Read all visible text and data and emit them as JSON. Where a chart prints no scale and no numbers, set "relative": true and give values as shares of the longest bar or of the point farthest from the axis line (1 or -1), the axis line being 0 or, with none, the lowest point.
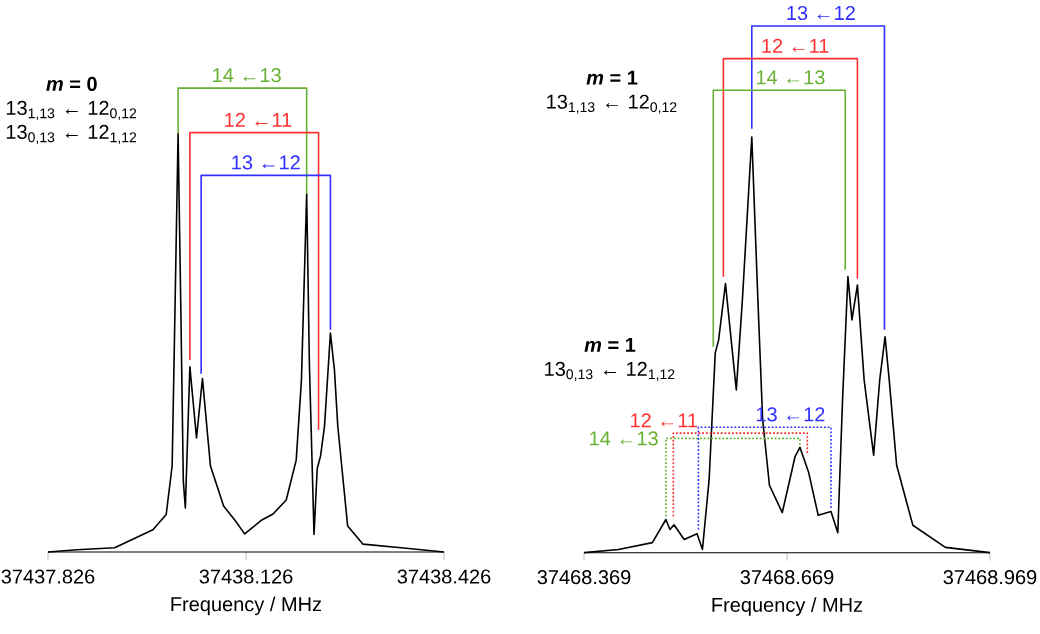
{
  "chart_data": [
    {
      "type": "line",
      "relative": true,
      "xlabel": "Frequency / MHz",
      "xlim": [
        37437.826,
        37438.426
      ],
      "xticks": [
        37437.826,
        37438.126,
        37438.426
      ],
      "series": [
        {
          "color": "#000000",
          "x": [
            37437.826,
            37437.87,
            37437.927,
            37437.985,
            37438.005,
            37438.014,
            37438.018,
            37438.023,
            37438.027,
            37438.031,
            37438.034,
            37438.041,
            37438.051,
            37438.06,
            37438.072,
            37438.092,
            37438.109,
            37438.124,
            37438.15,
            37438.167,
            37438.187,
            37438.202,
            37438.21,
            37438.218,
            37438.222,
            37438.229,
            37438.234,
            37438.239,
            37438.245,
            37438.254,
            37438.26,
            37438.265,
            37438.28,
            37438.303,
            37438.361,
            37438.426
          ],
          "values": [
            0,
            0.005,
            0.009,
            0.048,
            0.081,
            0.186,
            0.496,
            0.902,
            0.541,
            0.153,
            0.095,
            0.399,
            0.246,
            0.374,
            0.186,
            0.099,
            0.069,
            0.039,
            0.069,
            0.082,
            0.112,
            0.198,
            0.37,
            0.772,
            0.406,
            0.038,
            0.18,
            0.207,
            0.271,
            0.472,
            0.392,
            0.271,
            0.056,
            0.017,
            0.009,
            0
          ]
        },
        {
          "color": "#66b032",
          "line_style": "solid",
          "x": [
            37438.023,
            37438.023,
            37438.218,
            37438.218
          ],
          "values": [
            0.902,
            1,
            1,
            0.772
          ]
        },
        {
          "color": "#ff3030",
          "line_style": "solid",
          "x": [
            37438.041,
            37438.041,
            37438.236,
            37438.236
          ],
          "values": [
            0.414,
            0.904,
            0.904,
            0.263
          ]
        },
        {
          "color": "#3030ff",
          "line_style": "solid",
          "x": [
            37438.058,
            37438.058,
            37438.254,
            37438.254
          ],
          "values": [
            0.384,
            0.812,
            0.812,
            0.479
          ]
        }
      ],
      "annotations": [
        "*m* = 0",
        "13$_{1,13}$ ← 12$_{0,12}$",
        "13$_{0,13}$ ← 12$_{1,12}$",
        {
          "text": "14 ←13",
          "x": 37438.127,
          "y": 1
        },
        {
          "text": "12 ←11",
          "x": 37438.144,
          "y": 0.904
        },
        {
          "text": "13 ←12",
          "x": 37438.156,
          "y": 0.812
        }
      ]
    },
    {
      "type": "line",
      "relative": true,
      "xlabel": "Frequency / MHz",
      "xlim": [
        37468.369,
        37468.969
      ],
      "xticks": [
        37468.369,
        37468.669,
        37468.969
      ],
      "series": [
        {
          "color": "#000000",
          "x": [
            37468.369,
            37468.42,
            37468.47,
            37468.49,
            37468.496,
            37468.502,
            37468.517,
            37468.536,
            37468.544,
            37468.554,
            37468.563,
            37468.568,
            37468.578,
            37468.588,
            37468.594,
            37468.603,
            37468.617,
            37468.626,
            37468.633,
            37468.643,
            37468.662,
            37468.681,
            37468.688,
            37468.701,
            37468.715,
            37468.734,
            37468.744,
            37468.751,
            37468.759,
            37468.765,
            37468.773,
            37468.783,
            37468.797,
            37468.806,
            37468.814,
            37468.82,
            37468.831,
            37468.855,
            37468.903,
            37468.969
          ],
          "values": [
            0,
            0.006,
            0.019,
            0.063,
            0.044,
            0.053,
            0.025,
            0.036,
            0.006,
            0.139,
            0.379,
            0.404,
            0.511,
            0.385,
            0.309,
            0.48,
            0.789,
            0.48,
            0.253,
            0.128,
            0.076,
            0.183,
            0.2,
            0.152,
            0.071,
            0.078,
            0.038,
            0.29,
            0.524,
            0.442,
            0.508,
            0.328,
            0.185,
            0.328,
            0.41,
            0.328,
            0.166,
            0.052,
            0.01,
            0
          ]
        },
        {
          "color": "#3030ff",
          "line_style": "solid",
          "x": [
            37468.617,
            37468.617,
            37468.813,
            37468.813
          ],
          "values": [
            0.805,
            1,
            1,
            0.423
          ]
        },
        {
          "color": "#ff3030",
          "line_style": "solid",
          "x": [
            37468.575,
            37468.575,
            37468.773,
            37468.773
          ],
          "values": [
            0.524,
            0.938,
            0.938,
            0.52
          ]
        },
        {
          "color": "#66b032",
          "line_style": "solid",
          "x": [
            37468.56,
            37468.56,
            37468.755,
            37468.755
          ],
          "values": [
            0.391,
            0.878,
            0.878,
            0.537
          ]
        },
        {
          "color": "#3030ff",
          "line_style": "dotted",
          "x": [
            37468.538,
            37468.538,
            37468.734,
            37468.734
          ],
          "values": [
            0.044,
            0.238,
            0.238,
            0.082
          ]
        },
        {
          "color": "#ff3030",
          "line_style": "dotted",
          "x": [
            37468.501,
            37468.501,
            37468.699,
            37468.699
          ],
          "values": [
            0.069,
            0.227,
            0.227,
            0.187
          ]
        },
        {
          "color": "#66b032",
          "line_style": "dotted",
          "x": [
            37468.49,
            37468.49,
            37468.688,
            37468.688
          ],
          "values": [
            0.069,
            0.217,
            0.217,
            0.204
          ]
        }
      ],
      "annotations": [
        "*m* = 1",
        "13$_{1,13}$ ← 12$_{0,12}$",
        "*m* = 1",
        "13$_{0,13}$ ← 12$_{1,12}$",
        {
          "text": "13 ←12",
          "x": 37468.719,
          "y": 1
        },
        {
          "text": "12 ←11",
          "x": 37468.681,
          "y": 0.938
        },
        {
          "text": "14 ←13",
          "x": 37468.674,
          "y": 0.878
        },
        {
          "text": "13 ←12",
          "x": 37468.674,
          "y": 0.238
        },
        {
          "text": "12 ←11",
          "x": 37468.487,
          "y": 0.227
        },
        {
          "text": "14 ←13",
          "x": 37468.49,
          "y": 0.217
        }
      ]
    }
  ]
}
